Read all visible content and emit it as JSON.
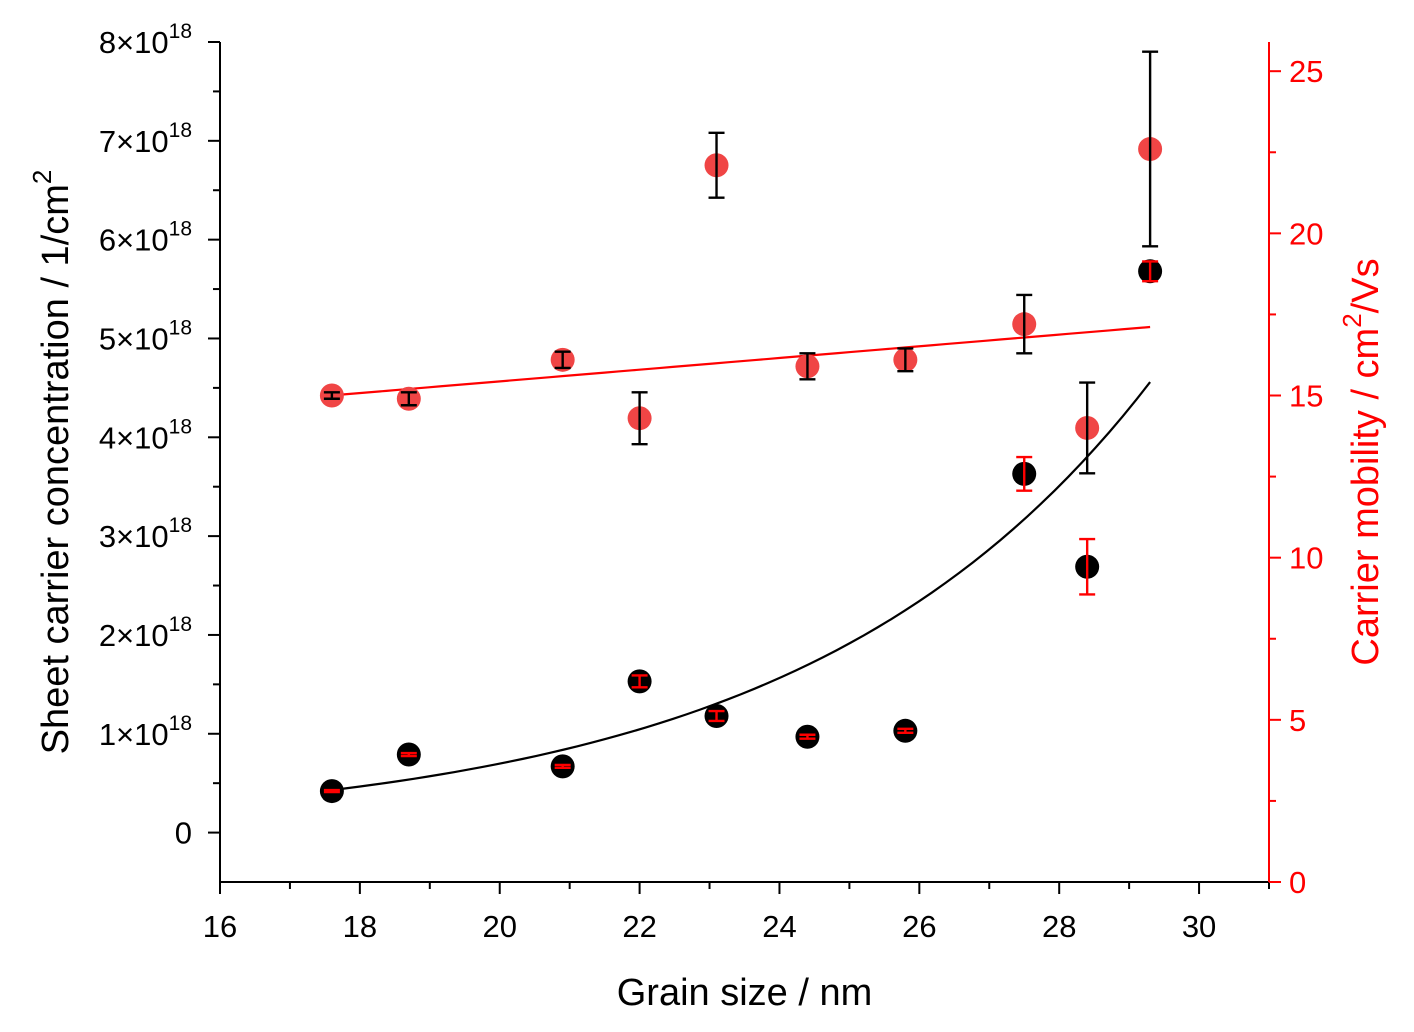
{
  "chart_data": {
    "type": "scatter",
    "xlabel": "Grain size / nm",
    "xlim": [
      16,
      31
    ],
    "x_ticks": [
      16,
      18,
      20,
      22,
      24,
      26,
      28,
      30
    ],
    "left_axis": {
      "label": "Sheet carrier concentration / 1/cm",
      "label_sup": "2",
      "lim": [
        -5e+17,
        8e+18
      ],
      "ticks": [
        {
          "value": 0,
          "mantissa": "0",
          "exp": ""
        },
        {
          "value": 1e+18,
          "mantissa": "1×10",
          "exp": "18"
        },
        {
          "value": 2e+18,
          "mantissa": "2×10",
          "exp": "18"
        },
        {
          "value": 3e+18,
          "mantissa": "3×10",
          "exp": "18"
        },
        {
          "value": 4e+18,
          "mantissa": "4×10",
          "exp": "18"
        },
        {
          "value": 5e+18,
          "mantissa": "5×10",
          "exp": "18"
        },
        {
          "value": 6e+18,
          "mantissa": "6×10",
          "exp": "18"
        },
        {
          "value": 7e+18,
          "mantissa": "7×10",
          "exp": "18"
        },
        {
          "value": 8e+18,
          "mantissa": "8×10",
          "exp": "18"
        }
      ],
      "color": "#000000"
    },
    "right_axis": {
      "label_pre": "Carrier mobility / cm",
      "label_sup": "2",
      "label_post": "/Vs",
      "lim": [
        0,
        25.9
      ],
      "ticks": [
        0,
        5,
        10,
        15,
        20,
        25
      ],
      "color": "#ff0000"
    },
    "series": [
      {
        "name": "Sheet carrier concentration",
        "axis": "left",
        "marker_color": "#000000",
        "errorbar_color": "#ff0000",
        "points": [
          {
            "x": 17.6,
            "y": 4.2e+17,
            "err": 1e+16
          },
          {
            "x": 18.7,
            "y": 7.9e+17,
            "err": 1.5e+16
          },
          {
            "x": 20.9,
            "y": 6.7e+17,
            "err": 1.5e+16
          },
          {
            "x": 22.0,
            "y": 1.53e+18,
            "err": 6e+16
          },
          {
            "x": 23.1,
            "y": 1.18e+18,
            "err": 5e+16
          },
          {
            "x": 24.4,
            "y": 9.7e+17,
            "err": 2e+16
          },
          {
            "x": 25.8,
            "y": 1.03e+18,
            "err": 2e+16
          },
          {
            "x": 27.5,
            "y": 3.63e+18,
            "err": 1.7e+17
          },
          {
            "x": 28.4,
            "y": 2.69e+18,
            "err": 2.8e+17
          },
          {
            "x": 29.3,
            "y": 5.68e+18,
            "err": 1e+17
          }
        ],
        "fit": {
          "type": "exponential",
          "a": 4.3e+17,
          "b": 0.2018,
          "x0": 17.6,
          "x_range": [
            17.6,
            29.3
          ]
        }
      },
      {
        "name": "Carrier mobility",
        "axis": "right",
        "marker_color": "#f04545",
        "errorbar_color": "#000000",
        "points": [
          {
            "x": 17.6,
            "y": 15.0,
            "err": 0.1
          },
          {
            "x": 18.7,
            "y": 14.9,
            "err": 0.2
          },
          {
            "x": 20.9,
            "y": 16.1,
            "err": 0.25
          },
          {
            "x": 22.0,
            "y": 14.3,
            "err": 0.8
          },
          {
            "x": 23.1,
            "y": 22.1,
            "err": 1.0
          },
          {
            "x": 24.4,
            "y": 15.9,
            "err": 0.4
          },
          {
            "x": 25.8,
            "y": 16.1,
            "err": 0.35
          },
          {
            "x": 27.5,
            "y": 17.2,
            "err": 0.9
          },
          {
            "x": 28.4,
            "y": 14.0,
            "err": 1.4
          },
          {
            "x": 29.3,
            "y": 22.6,
            "err": 3.0
          }
        ],
        "fit": {
          "type": "linear",
          "slope": 0.1803,
          "intercept": 11.83,
          "x_range": [
            17.6,
            29.3
          ]
        }
      }
    ]
  }
}
